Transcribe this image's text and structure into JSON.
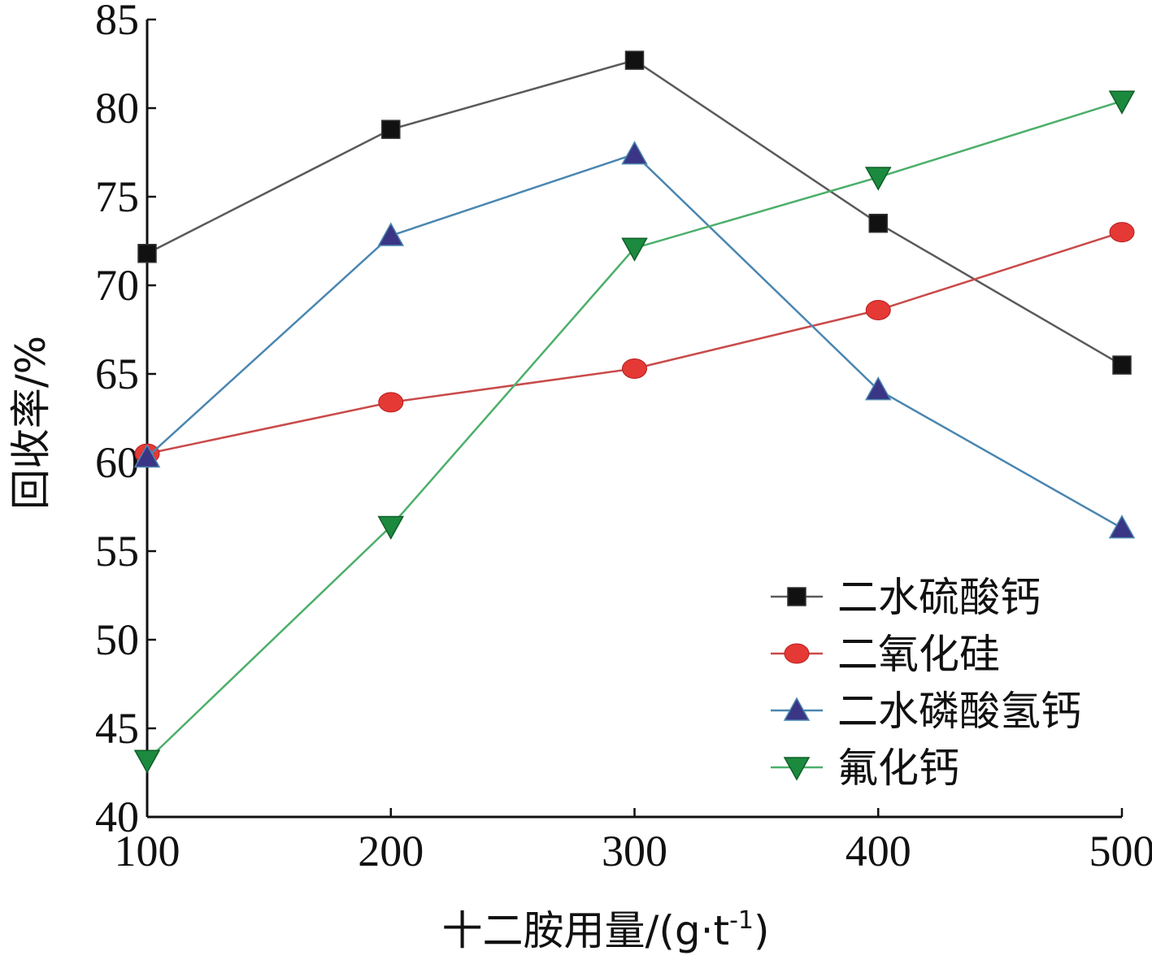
{
  "chart_data": {
    "type": "line",
    "xlabel": "十二胺用量/(g·t",
    "xlabel_superscript": "-1",
    "xlabel_close": ")",
    "ylabel": "回收率/%",
    "x": [
      100,
      200,
      300,
      400,
      500
    ],
    "xlim": [
      100,
      500
    ],
    "ylim": [
      40,
      85
    ],
    "xticks": [
      "100",
      "200",
      "300",
      "400",
      "500"
    ],
    "yticks": [
      "40",
      "45",
      "50",
      "55",
      "60",
      "65",
      "70",
      "75",
      "80",
      "85"
    ],
    "grid": false,
    "legend_position": "bottom-right",
    "series": [
      {
        "name": "二水硫酸钙",
        "values": [
          71.8,
          78.8,
          82.7,
          73.5,
          65.5
        ],
        "color": "#5a5a5a",
        "marker": "square",
        "marker_color": "#111111"
      },
      {
        "name": "二氧化硅",
        "values": [
          60.5,
          63.4,
          65.3,
          68.6,
          73.0
        ],
        "color": "#c94a4a",
        "marker": "circle",
        "marker_color": "#e53935"
      },
      {
        "name": "二水磷酸氢钙",
        "values": [
          60.3,
          72.8,
          77.4,
          64.1,
          56.3
        ],
        "color": "#4a86b0",
        "marker": "triangle-up",
        "marker_color": "#3a3585"
      },
      {
        "name": "氟化钙",
        "values": [
          43.2,
          56.4,
          72.1,
          76.1,
          80.4
        ],
        "color": "#4caf6a",
        "marker": "triangle-down",
        "marker_color": "#1b8a3e"
      }
    ]
  }
}
